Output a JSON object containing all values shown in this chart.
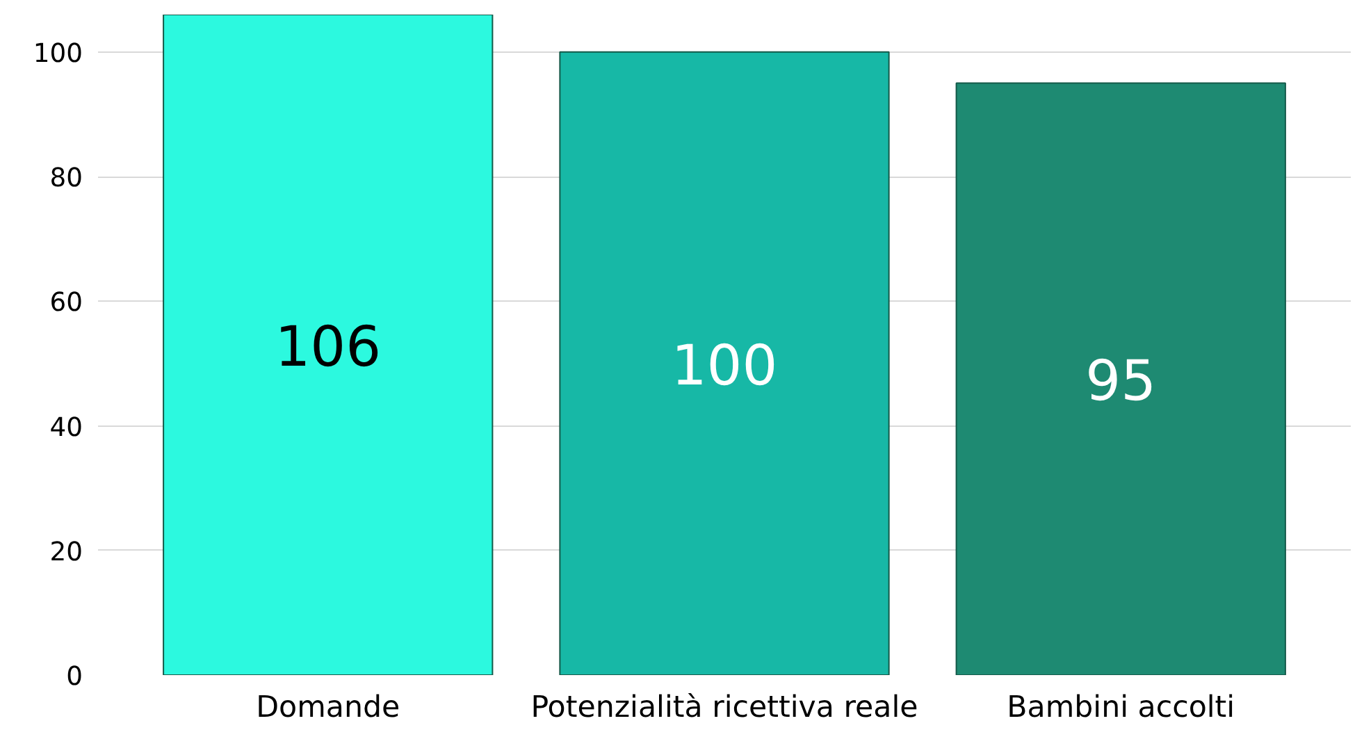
{
  "chart_data": {
    "type": "bar",
    "categories": [
      "Domande",
      "Potenzialità ricettiva reale",
      "Bambini accolti"
    ],
    "values": [
      106,
      100,
      95
    ],
    "colors": [
      "#2cf9df",
      "#17b8a6",
      "#1e8a72"
    ],
    "ylim": [
      0,
      106
    ],
    "yticks": [
      0,
      20,
      40,
      60,
      80,
      100
    ],
    "grid": "y",
    "data_labels": true
  }
}
